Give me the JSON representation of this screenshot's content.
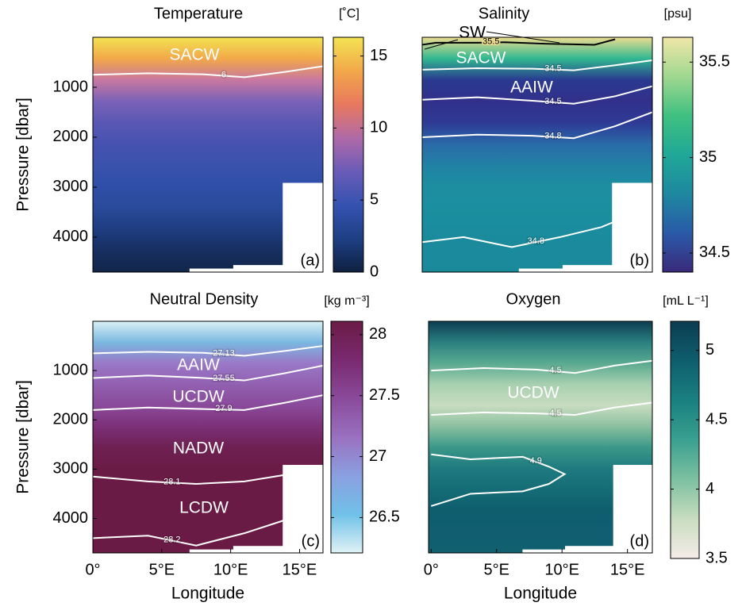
{
  "chart_data": [
    {
      "type": "contour",
      "title": "Temperature",
      "colorbar_label": "[˚C]",
      "panel_label": "(a)",
      "ylabel": "Pressure [dbar]",
      "xlim": [
        0,
        16.7
      ],
      "ylim": [
        0,
        4700
      ],
      "yticks": [
        1000,
        2000,
        3000,
        4000
      ],
      "clim": [
        0,
        16.3
      ],
      "cticks": [
        0,
        5,
        10,
        15
      ],
      "colormap": [
        "#0f2140",
        "#1e3f85",
        "#3552b0",
        "#6a5cb8",
        "#b06aa8",
        "#e8785e",
        "#f2a84a",
        "#f3e352"
      ],
      "field_colors": [
        "#f3e352",
        "#f2a84a",
        "#c878a0",
        "#7a62b8",
        "#5a58b4",
        "#4652b0",
        "#3a52ac",
        "#2f4fa8",
        "#2a4a9a",
        "#1e3d80",
        "#172f60",
        "#12264a"
      ],
      "annotations": [
        "SACW"
      ],
      "contours": [
        {
          "level": 6,
          "color": "#ffffff",
          "x": [
            0,
            4,
            8,
            11,
            14,
            16.7
          ],
          "y": [
            750,
            720,
            740,
            800,
            690,
            580
          ]
        }
      ]
    },
    {
      "type": "contour",
      "title": "Salinity",
      "colorbar_label": "[psu]",
      "panel_label": "(b)",
      "xlim": [
        0,
        16.7
      ],
      "ylim": [
        0,
        4700
      ],
      "clim": [
        34.4,
        35.63
      ],
      "cticks": [
        34.5,
        35,
        35.5
      ],
      "colormap": [
        "#3a2a7a",
        "#2a5aa8",
        "#1e88a0",
        "#20a898",
        "#40c080",
        "#a0d890",
        "#f0e6a8"
      ],
      "field_colors": [
        "#eedd90",
        "#30b890",
        "#2a3a90",
        "#32308a",
        "#2e3a95",
        "#2a6aa8",
        "#2082a4",
        "#1d8ea0",
        "#1b8f9f",
        "#1a8c9d",
        "#1b8a9c",
        "#1a8a9b"
      ],
      "annotations": [
        "SW",
        "SACW",
        "AAIW"
      ],
      "contours": [
        {
          "level": 35.5,
          "color": "#000000",
          "x": [
            0,
            1,
            4,
            6,
            9,
            11,
            12.5,
            14
          ],
          "y": [
            150,
            110,
            110,
            100,
            130,
            140,
            150,
            40
          ]
        },
        {
          "level": 34.5,
          "color": "#ffffff",
          "x": [
            0,
            4,
            8,
            11,
            14,
            16.7
          ],
          "y": [
            650,
            620,
            630,
            660,
            560,
            460
          ]
        },
        {
          "level": 34.5,
          "color": "#ffffff",
          "x": [
            0,
            4,
            8,
            11,
            14,
            16.7
          ],
          "y": [
            1250,
            1200,
            1270,
            1330,
            1180,
            980
          ]
        },
        {
          "level": 34.8,
          "color": "#ffffff",
          "x": [
            0,
            4,
            8,
            11,
            14,
            16.7
          ],
          "y": [
            2000,
            1950,
            1970,
            2020,
            1780,
            1500
          ]
        },
        {
          "level": 34.8,
          "color": "#ffffff",
          "x": [
            0,
            3,
            6.5,
            10,
            13,
            14.3
          ],
          "y": [
            4100,
            4000,
            4200,
            4000,
            3800,
            3650
          ]
        }
      ]
    },
    {
      "type": "contour",
      "title": "Neutral Density",
      "colorbar_label": "[kg m⁻³]",
      "panel_label": "(c)",
      "ylabel": "Pressure [dbar]",
      "xlabel": "Longitude",
      "xlim": [
        0,
        16.7
      ],
      "ylim": [
        0,
        4700
      ],
      "xticks": [
        {
          "value": 0,
          "label": "0°"
        },
        {
          "value": 5,
          "label": "5°E"
        },
        {
          "value": 10,
          "label": "10°E"
        },
        {
          "value": 15,
          "label": "15°E"
        }
      ],
      "yticks": [
        1000,
        2000,
        3000,
        4000
      ],
      "clim": [
        26.21,
        28.11
      ],
      "cticks": [
        26.5,
        27,
        27.5,
        28
      ],
      "colormap": [
        "#dff2f5",
        "#70c0e8",
        "#8aa0e0",
        "#9a70c0",
        "#8a4a9a",
        "#7a2a70",
        "#6a1b45"
      ],
      "field_colors": [
        "#d9f0f5",
        "#7ab8e0",
        "#9a78c8",
        "#9260b0",
        "#8a4a9a",
        "#7c3078",
        "#6e2052",
        "#6a1b45",
        "#6a1b45",
        "#6a1b45",
        "#6a1b45",
        "#6a1b45"
      ],
      "annotations": [
        "AAIW",
        "UCDW",
        "NADW",
        "LCDW"
      ],
      "contours": [
        {
          "level": 27.13,
          "color": "#ffffff",
          "x": [
            0,
            4,
            8,
            11,
            14,
            16.7
          ],
          "y": [
            650,
            620,
            640,
            700,
            600,
            500
          ]
        },
        {
          "level": 27.55,
          "color": "#ffffff",
          "x": [
            0,
            4,
            8,
            11,
            14,
            16.7
          ],
          "y": [
            1150,
            1100,
            1150,
            1200,
            1050,
            900
          ]
        },
        {
          "level": 27.9,
          "color": "#ffffff",
          "x": [
            0,
            4,
            8,
            11,
            14,
            16.7
          ],
          "y": [
            1800,
            1750,
            1780,
            1800,
            1650,
            1500
          ]
        },
        {
          "level": 28.1,
          "color": "#ffffff",
          "x": [
            0,
            4,
            7.5,
            11,
            14.3
          ],
          "y": [
            3150,
            3250,
            3300,
            3250,
            3100
          ]
        },
        {
          "level": 28.2,
          "color": "#ffffff",
          "x": [
            0,
            4,
            7.5,
            11,
            14.3
          ],
          "y": [
            4400,
            4350,
            4550,
            4300,
            4000
          ]
        }
      ]
    },
    {
      "type": "contour",
      "title": "Oxygen",
      "colorbar_label": "[mL L⁻¹]",
      "panel_label": "(d)",
      "xlabel": "Longitude",
      "xlim": [
        -0.2,
        16.9
      ],
      "ylim": [
        0,
        4700
      ],
      "xticks": [
        {
          "value": 0,
          "label": "0°"
        },
        {
          "value": 5,
          "label": "5°E"
        },
        {
          "value": 10,
          "label": "10°E"
        },
        {
          "value": 15,
          "label": "15°E"
        }
      ],
      "clim": [
        3.5,
        5.21
      ],
      "cticks": [
        3.5,
        4,
        4.5,
        5
      ],
      "colormap": [
        "#f5ece8",
        "#c8dcc0",
        "#7cc0a0",
        "#3aa090",
        "#1a8080",
        "#0e5e6e",
        "#0c3c50"
      ],
      "field_colors": [
        "#0c3c50",
        "#2a8080",
        "#5aaa90",
        "#a8d0b0",
        "#c8dcc0",
        "#8ac0a0",
        "#3a9888",
        "#1e7a80",
        "#156c76",
        "#0e5e6e",
        "#105e70",
        "#106070"
      ],
      "annotations": [
        "UCDW"
      ],
      "contours": [
        {
          "level": 4.5,
          "color": "#ffffff",
          "x": [
            0,
            4,
            8,
            11,
            14,
            16.9
          ],
          "y": [
            1000,
            950,
            980,
            1050,
            900,
            800
          ]
        },
        {
          "level": 4.5,
          "color": "#ffffff",
          "x": [
            0,
            4,
            8,
            11,
            14,
            16.9
          ],
          "y": [
            1900,
            1850,
            1870,
            1900,
            1750,
            1650
          ]
        },
        {
          "level": 4.9,
          "color": "#ffffff",
          "x": [
            0,
            3,
            7,
            9,
            10.2,
            9,
            7,
            3,
            0
          ],
          "y": [
            2700,
            2800,
            2750,
            2950,
            3100,
            3300,
            3450,
            3500,
            3750
          ]
        }
      ]
    }
  ]
}
